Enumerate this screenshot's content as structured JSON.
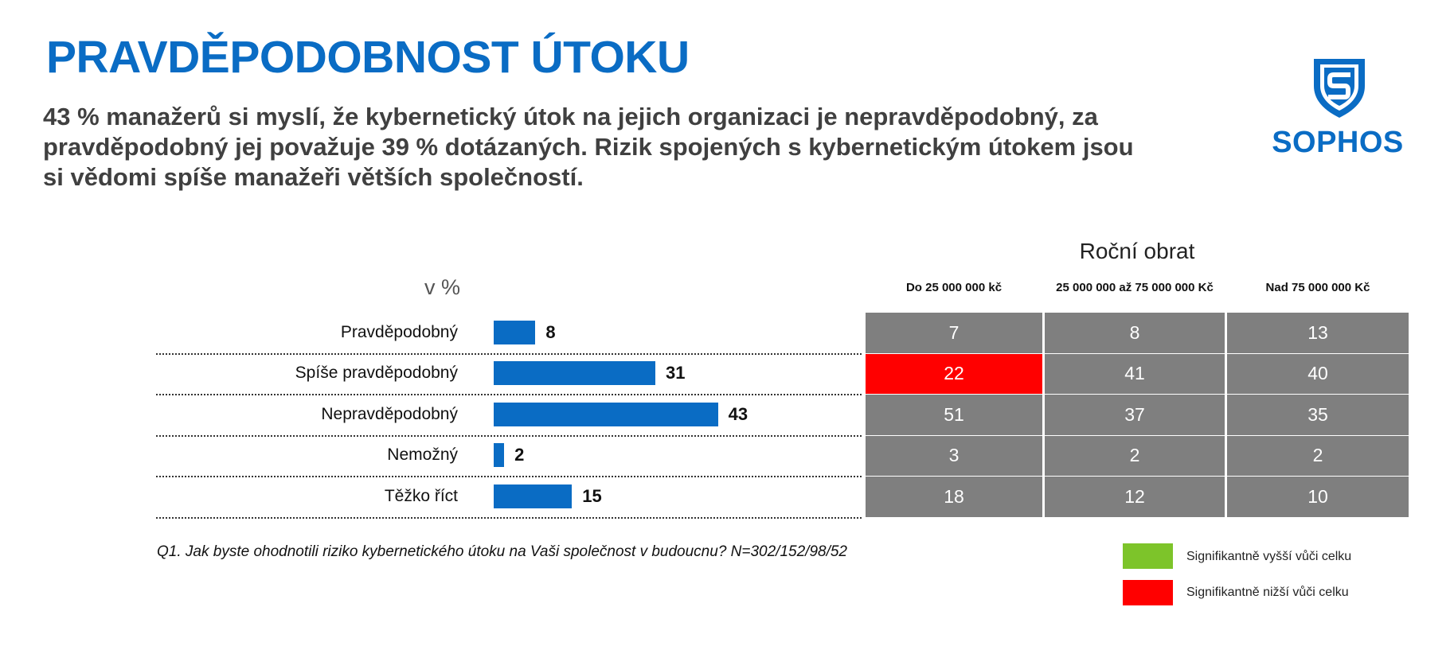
{
  "title": "PRAVDĚPODOBNOST ÚTOKU",
  "subtitle": "43 % manažerů si myslí, že kybernetický útok na jejich organizaci je nepravděpodobný, za pravděpodobný jej považuje 39 % dotázaných. Rizik spojených s kybernetickým útokem jsou si vědomi spíše manažeři větších společností.",
  "logo": {
    "text": "SOPHOS",
    "icon": "shield-s-icon",
    "color": "#0a6cc4"
  },
  "chart_data": {
    "type": "bar",
    "orientation": "horizontal",
    "unit_label": "v %",
    "categories": [
      "Pravděpodobný",
      "Spíše pravděpodobný",
      "Nepravděpodobný",
      "Nemožný",
      "Těžko říct"
    ],
    "values": [
      8,
      31,
      43,
      2,
      15
    ],
    "bar_color": "#0a6cc4"
  },
  "table": {
    "group_title": "Roční obrat",
    "columns": [
      "Do 25 000 000 kč",
      "25 000 000 až 75 000 000 Kč",
      "Nad 75 000 000 Kč"
    ],
    "rows": [
      [
        7,
        8,
        13
      ],
      [
        22,
        41,
        40
      ],
      [
        51,
        37,
        35
      ],
      [
        3,
        2,
        2
      ],
      [
        18,
        12,
        10
      ]
    ],
    "highlights": [
      {
        "row": 1,
        "col": 0,
        "type": "lower"
      }
    ],
    "colors": {
      "default": "#7f7f7f",
      "higher": "#7dc42a",
      "lower": "#ff0000"
    }
  },
  "footnote": "Q1. Jak byste ohodnotili riziko kybernetického útoku na Vaši společnost v budoucnu? N=302/152/98/52",
  "legend": [
    {
      "label": "Signifikantně vyšší vůči celku",
      "color": "#7dc42a"
    },
    {
      "label": "Signifikantně nižší vůči celku",
      "color": "#ff0000"
    }
  ]
}
